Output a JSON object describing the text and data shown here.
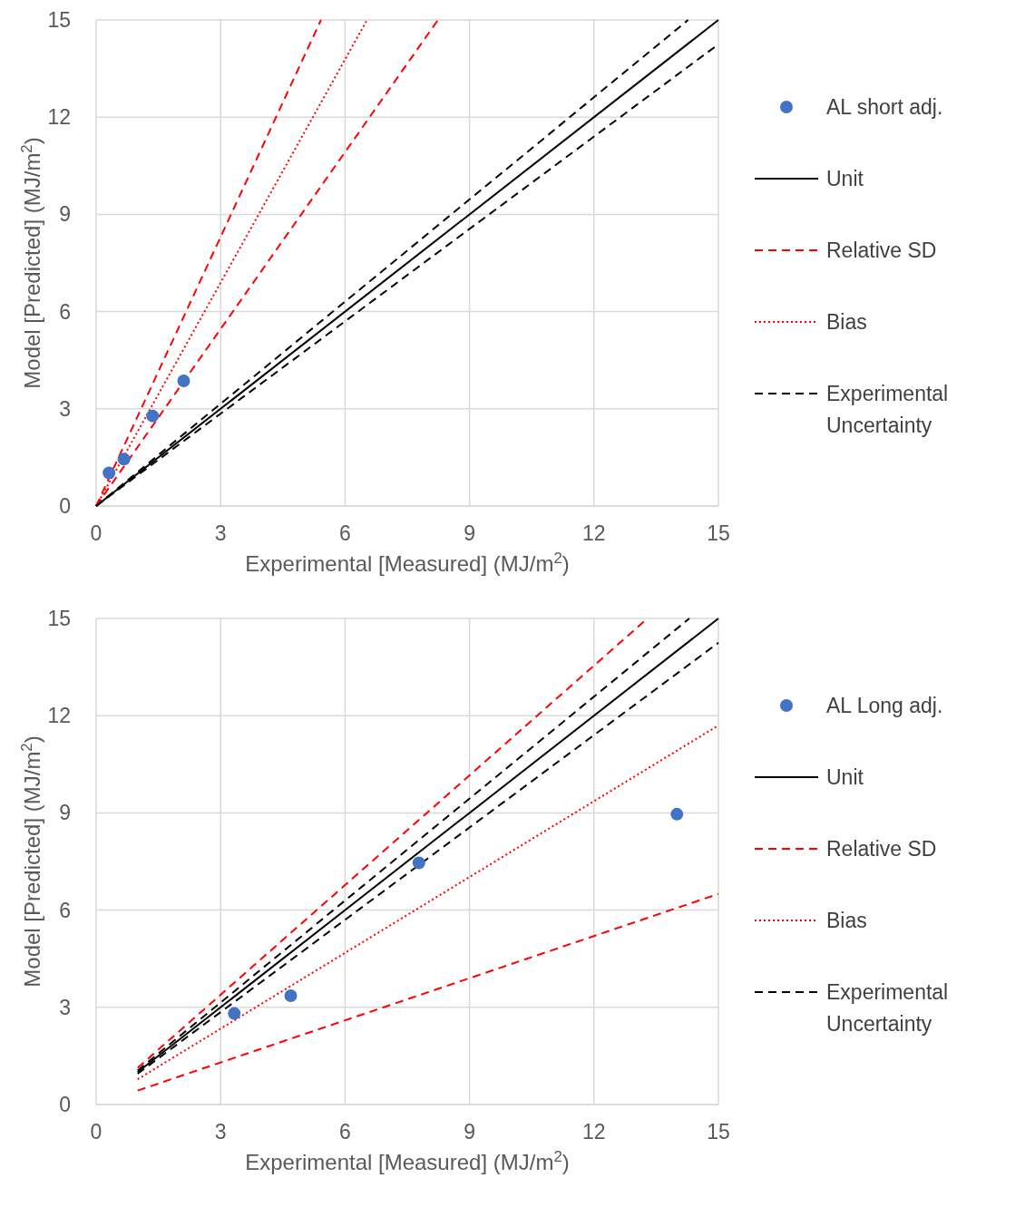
{
  "chart_data": [
    {
      "type": "scatter",
      "xlabel": "Experimental [Measured] (MJ/m$^{2}$)",
      "ylabel": "Model [Predicted] (MJ/m$^{2}$)",
      "xlim": [
        0,
        15
      ],
      "ylim": [
        0,
        15
      ],
      "xticks": [
        0,
        3,
        6,
        9,
        12,
        15
      ],
      "yticks": [
        0,
        3,
        6,
        9,
        12,
        15
      ],
      "grid": true,
      "legend": "right",
      "series": [
        {
          "name": "AL short adj.",
          "marker": "circle",
          "color": "#4472c4",
          "x": [
            0.31,
            0.67,
            1.36,
            2.11
          ],
          "values": [
            1.02,
            1.45,
            2.78,
            3.86
          ]
        },
        {
          "name": "Unit",
          "type": "line",
          "line_style": "solid",
          "color": "#000000",
          "x": [
            0,
            15
          ],
          "values": [
            0,
            15
          ]
        },
        {
          "name": "Relative SD",
          "type": "line",
          "line_style": "dashed",
          "color": "#ff0000",
          "x": [
            0,
            5.42
          ],
          "values": [
            0,
            15
          ]
        },
        {
          "type": "line",
          "line_style": "dashed",
          "color": "#ff0000",
          "x": [
            0,
            8.24
          ],
          "values": [
            0,
            15
          ]
        },
        {
          "name": "Bias",
          "type": "line",
          "line_style": "dotted",
          "color": "#ff0000",
          "x": [
            0,
            6.53
          ],
          "values": [
            0,
            15
          ]
        },
        {
          "name": "Experimental Uncertainty",
          "type": "line",
          "line_style": "dashed",
          "color": "#000000",
          "x": [
            0,
            14.27
          ],
          "values": [
            0,
            15
          ]
        },
        {
          "type": "line",
          "line_style": "dashed",
          "color": "#000000",
          "x": [
            0,
            15
          ],
          "values": [
            0,
            14.25
          ]
        }
      ]
    },
    {
      "type": "scatter",
      "xlabel": "Experimental [Measured] (MJ/m$^{2}$)",
      "ylabel": "Model [Predicted] (MJ/m$^{2}$)",
      "xlim": [
        0,
        15
      ],
      "ylim": [
        0,
        15
      ],
      "xticks": [
        0,
        3,
        6,
        9,
        12,
        15
      ],
      "yticks": [
        0,
        3,
        6,
        9,
        12,
        15
      ],
      "grid": true,
      "legend": "right",
      "series": [
        {
          "name": "AL Long adj.",
          "marker": "circle",
          "color": "#4472c4",
          "x": [
            3.33,
            4.69,
            7.78,
            14.0
          ],
          "values": [
            2.81,
            3.36,
            7.46,
            8.96
          ]
        },
        {
          "name": "Unit",
          "type": "line",
          "line_style": "solid",
          "color": "#000000",
          "x": [
            1,
            15
          ],
          "values": [
            1,
            15
          ]
        },
        {
          "name": "Relative SD",
          "type": "line",
          "line_style": "dashed",
          "color": "#ff0000",
          "x": [
            1,
            13.29
          ],
          "values": [
            1.13,
            15
          ]
        },
        {
          "type": "line",
          "line_style": "dashed",
          "color": "#ff0000",
          "x": [
            1,
            15
          ],
          "values": [
            0.43,
            6.5
          ]
        },
        {
          "name": "Bias",
          "type": "line",
          "line_style": "dotted",
          "color": "#ff0000",
          "x": [
            1,
            15
          ],
          "values": [
            0.78,
            11.7
          ]
        },
        {
          "name": "Experimental Uncertainty",
          "type": "line",
          "line_style": "dashed",
          "color": "#000000",
          "x": [
            1,
            14.3
          ],
          "values": [
            1.05,
            15
          ]
        },
        {
          "type": "line",
          "line_style": "dashed",
          "color": "#000000",
          "x": [
            1,
            15
          ],
          "values": [
            0.95,
            14.25
          ]
        }
      ]
    }
  ]
}
